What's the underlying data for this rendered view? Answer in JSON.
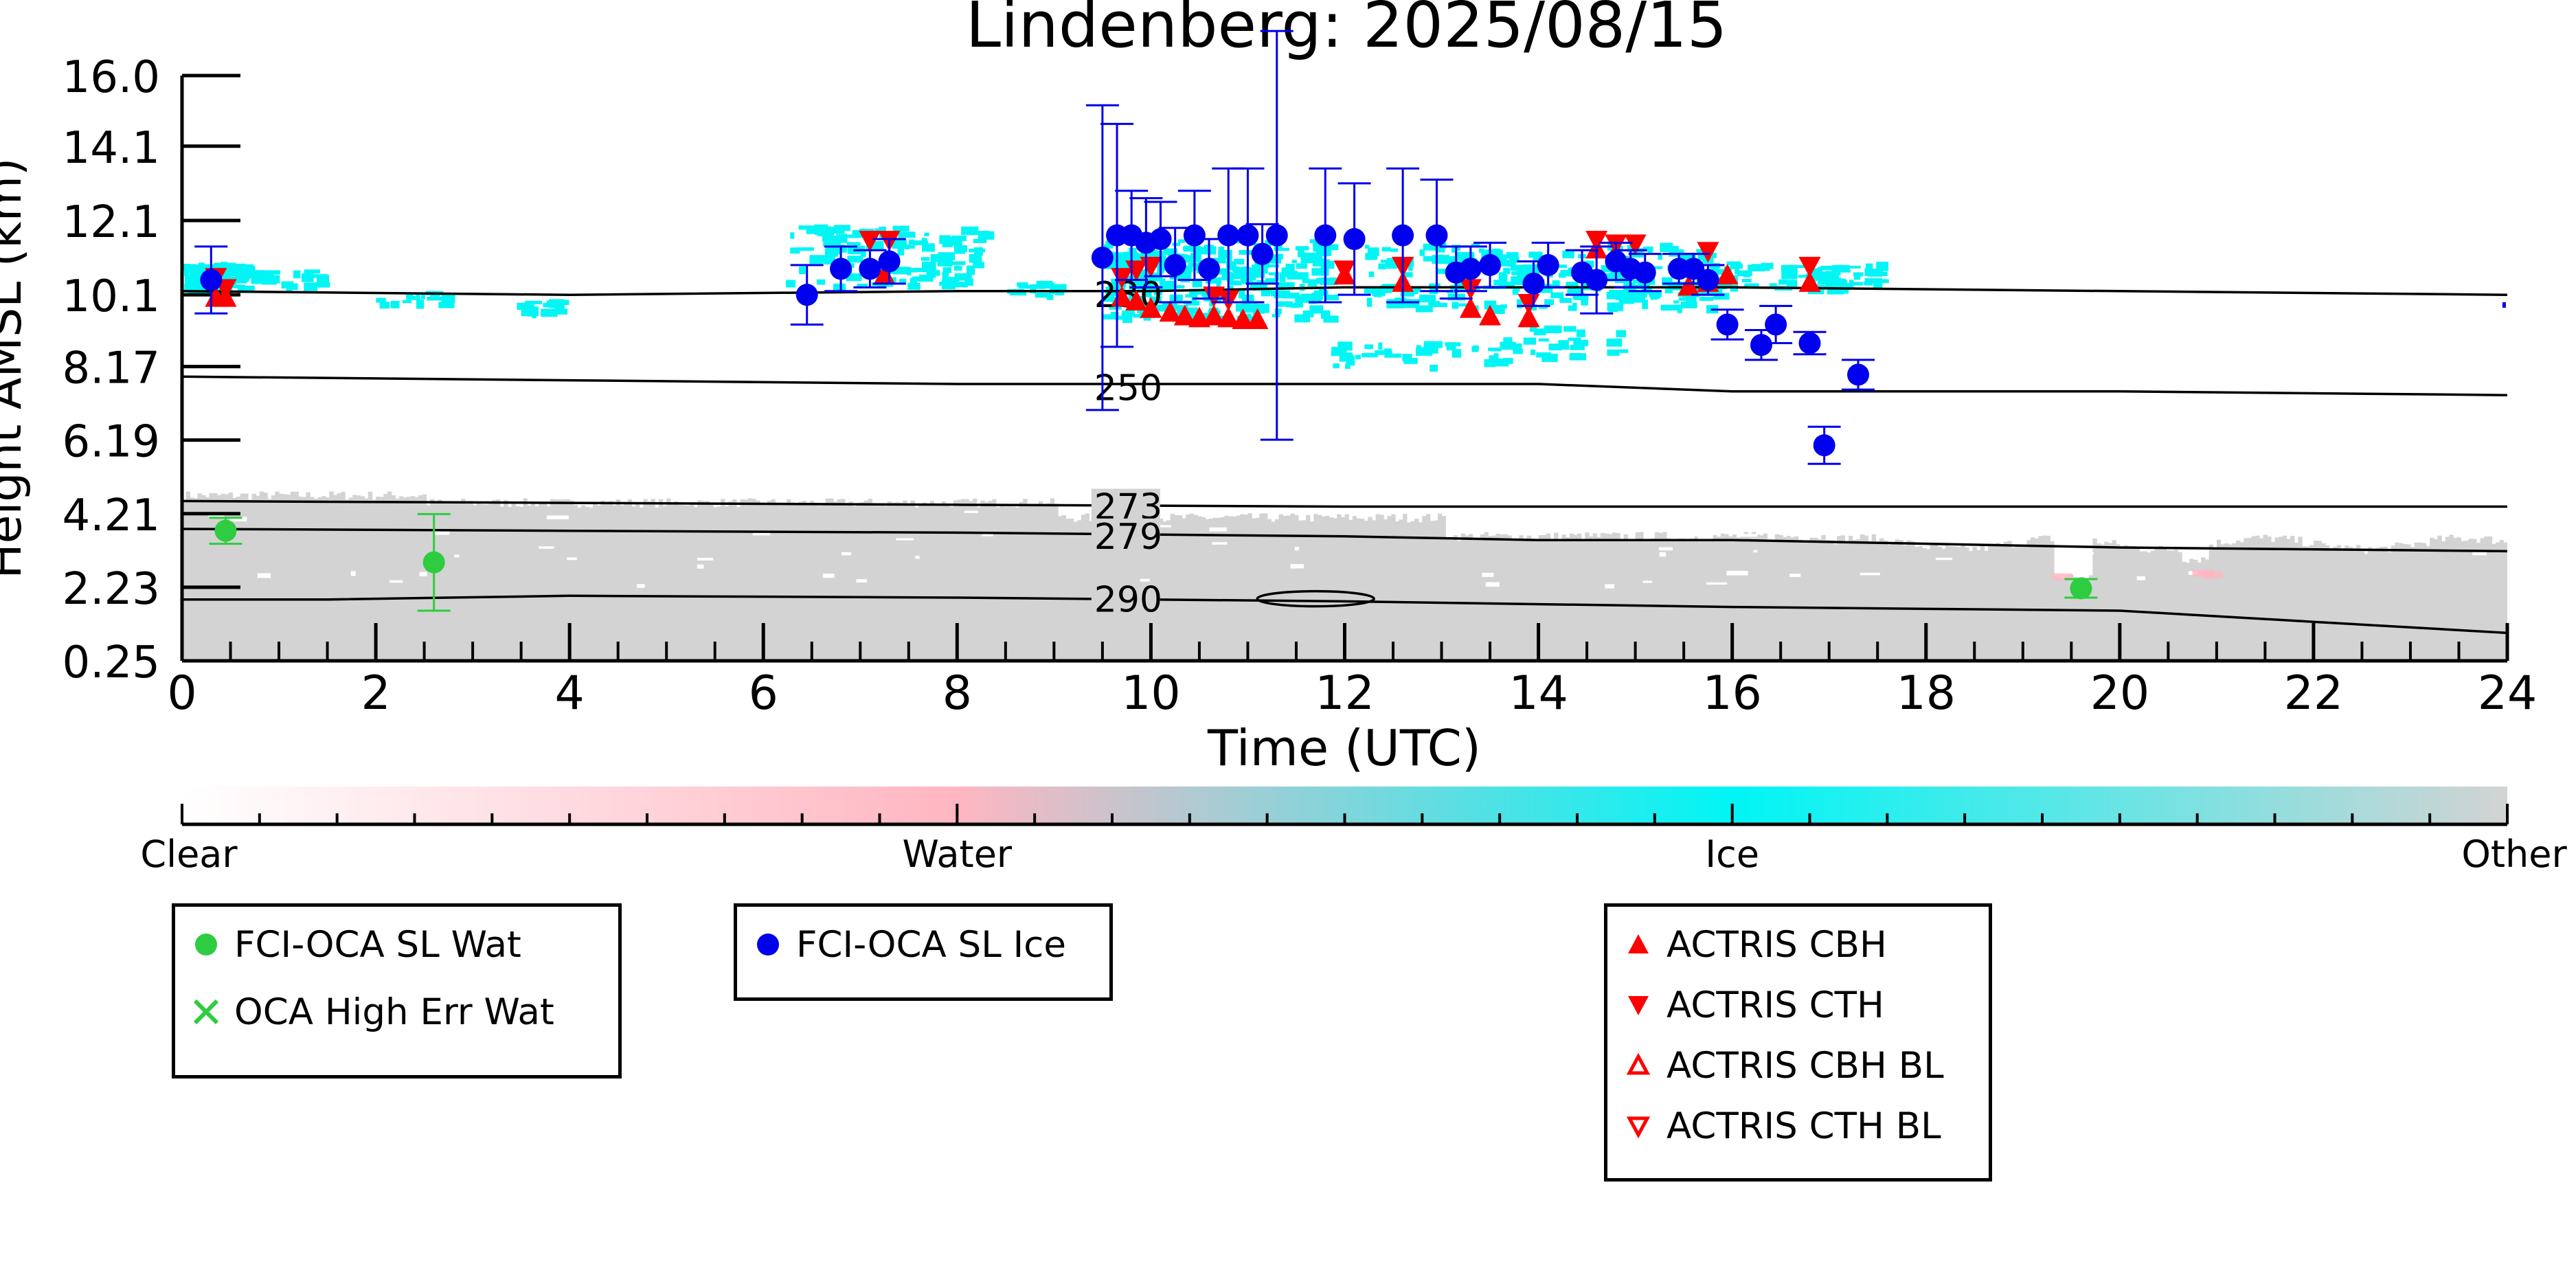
{
  "chart_data": {
    "type": "scatter",
    "title": "Lindenberg: 2025/08/15",
    "xlabel": "Time (UTC)",
    "ylabel": "Height AMSL (km)",
    "xlim": [
      0,
      24
    ],
    "ylim": [
      0.25,
      16.0
    ],
    "x_ticks": [
      "0",
      "2",
      "4",
      "6",
      "8",
      "10",
      "12",
      "14",
      "16",
      "18",
      "20",
      "22",
      "24"
    ],
    "y_ticks": [
      "0.25",
      "2.23",
      "4.21",
      "6.19",
      "8.17",
      "10.1",
      "12.1",
      "14.1",
      "16.0"
    ],
    "background": "cloud phase classification (Clear, Water, Ice, Other) with temperature contours (K)",
    "colorbar": {
      "labels": [
        "Clear",
        "Water",
        "Ice",
        "Other"
      ],
      "colors": [
        "#ffffff",
        "#ffb6c1",
        "#00f5f5",
        "#d3d3d3"
      ]
    },
    "temperature_contours": [
      {
        "label": "230",
        "x": [
          0,
          4,
          8,
          10,
          12,
          16,
          20,
          24
        ],
        "y": [
          10.2,
          10.1,
          10.2,
          10.2,
          10.3,
          10.3,
          10.2,
          10.1
        ],
        "label_at": [
          9.4,
          10.1
        ]
      },
      {
        "label": "250",
        "x": [
          0,
          4,
          8,
          10,
          12,
          14,
          16,
          20,
          24
        ],
        "y": [
          7.9,
          7.8,
          7.7,
          7.7,
          7.7,
          7.7,
          7.5,
          7.5,
          7.4
        ],
        "label_at": [
          9.4,
          7.6
        ]
      },
      {
        "label": "273",
        "x": [
          0,
          4,
          8,
          12,
          16,
          20,
          24
        ],
        "y": [
          4.55,
          4.5,
          4.45,
          4.4,
          4.4,
          4.4,
          4.4
        ],
        "label_at": [
          9.4,
          4.4
        ]
      },
      {
        "label": "279",
        "x": [
          0,
          4,
          8,
          12,
          14,
          16,
          20,
          24
        ],
        "y": [
          3.8,
          3.75,
          3.7,
          3.6,
          3.5,
          3.5,
          3.3,
          3.2
        ],
        "label_at": [
          9.4,
          3.6
        ]
      },
      {
        "label": "290",
        "x": [
          0,
          1.5,
          4,
          8,
          10,
          12,
          16,
          20,
          22,
          24
        ],
        "y": [
          1.9,
          1.9,
          2.0,
          1.95,
          1.9,
          1.85,
          1.7,
          1.6,
          1.3,
          1.0
        ],
        "label_at": [
          9.4,
          1.9
        ]
      }
    ],
    "series": [
      {
        "name": "FCI-OCA SL Wat",
        "color": "#2ecc40",
        "marker": "circle",
        "points": [
          {
            "x": 0.45,
            "y": 3.75,
            "err": 0.35
          },
          {
            "x": 2.6,
            "y": 2.9,
            "err": 1.3
          },
          {
            "x": 19.6,
            "y": 2.2,
            "err": 0.25
          }
        ]
      },
      {
        "name": "OCA High Err Wat",
        "color": "#2ecc40",
        "marker": "x",
        "points": []
      },
      {
        "name": "FCI-OCA SL Ice",
        "color": "#0000ee",
        "marker": "circle",
        "points": [
          {
            "x": 0.3,
            "y": 10.5,
            "err": 0.9
          },
          {
            "x": 6.45,
            "y": 10.1,
            "err": 0.8
          },
          {
            "x": 6.8,
            "y": 10.8,
            "err": 0.6
          },
          {
            "x": 7.1,
            "y": 10.8,
            "err": 0.5
          },
          {
            "x": 7.3,
            "y": 11.0,
            "err": 0.6
          },
          {
            "x": 9.5,
            "y": 11.1,
            "err": 4.1
          },
          {
            "x": 9.65,
            "y": 11.7,
            "err": 3.0
          },
          {
            "x": 9.8,
            "y": 11.7,
            "err": 1.2
          },
          {
            "x": 9.95,
            "y": 11.5,
            "err": 1.2
          },
          {
            "x": 10.1,
            "y": 11.6,
            "err": 1.0
          },
          {
            "x": 10.25,
            "y": 10.9,
            "err": 1.0
          },
          {
            "x": 10.45,
            "y": 11.7,
            "err": 1.2
          },
          {
            "x": 10.6,
            "y": 10.8,
            "err": 0.8
          },
          {
            "x": 10.8,
            "y": 11.7,
            "err": 1.8
          },
          {
            "x": 11.0,
            "y": 11.7,
            "err": 1.8
          },
          {
            "x": 11.15,
            "y": 11.2,
            "err": 0.8
          },
          {
            "x": 11.3,
            "y": 11.7,
            "err": 5.5
          },
          {
            "x": 11.8,
            "y": 11.7,
            "err": 1.8
          },
          {
            "x": 12.1,
            "y": 11.6,
            "err": 1.5
          },
          {
            "x": 12.6,
            "y": 11.7,
            "err": 1.8
          },
          {
            "x": 12.95,
            "y": 11.7,
            "err": 1.5
          },
          {
            "x": 13.15,
            "y": 10.7,
            "err": 0.7
          },
          {
            "x": 13.3,
            "y": 10.8,
            "err": 0.6
          },
          {
            "x": 13.5,
            "y": 10.9,
            "err": 0.6
          },
          {
            "x": 13.95,
            "y": 10.4,
            "err": 0.6
          },
          {
            "x": 14.1,
            "y": 10.9,
            "err": 0.6
          },
          {
            "x": 14.45,
            "y": 10.7,
            "err": 0.6
          },
          {
            "x": 14.6,
            "y": 10.5,
            "err": 0.9
          },
          {
            "x": 14.8,
            "y": 11.0,
            "err": 0.5
          },
          {
            "x": 14.95,
            "y": 10.8,
            "err": 0.5
          },
          {
            "x": 15.1,
            "y": 10.7,
            "err": 0.5
          },
          {
            "x": 15.45,
            "y": 10.8,
            "err": 0.4
          },
          {
            "x": 15.6,
            "y": 10.8,
            "err": 0.4
          },
          {
            "x": 15.75,
            "y": 10.5,
            "err": 0.4
          },
          {
            "x": 15.95,
            "y": 9.3,
            "err": 0.4
          },
          {
            "x": 16.3,
            "y": 8.75,
            "err": 0.4
          },
          {
            "x": 16.45,
            "y": 9.3,
            "err": 0.5
          },
          {
            "x": 16.8,
            "y": 8.8,
            "err": 0.3
          },
          {
            "x": 16.95,
            "y": 6.05,
            "err": 0.5
          },
          {
            "x": 17.3,
            "y": 7.95,
            "err": 0.4
          }
        ]
      },
      {
        "name": "ACTRIS CBH",
        "color": "#ff0000",
        "marker": "triangle-up",
        "points": [
          {
            "x": 0.35,
            "y": 10.0
          },
          {
            "x": 0.45,
            "y": 10.0
          },
          {
            "x": 7.25,
            "y": 10.6
          },
          {
            "x": 9.7,
            "y": 10.0
          },
          {
            "x": 9.85,
            "y": 9.9
          },
          {
            "x": 10.0,
            "y": 9.7
          },
          {
            "x": 10.2,
            "y": 9.6
          },
          {
            "x": 10.35,
            "y": 9.5
          },
          {
            "x": 10.5,
            "y": 9.45
          },
          {
            "x": 10.65,
            "y": 9.5
          },
          {
            "x": 10.8,
            "y": 9.45
          },
          {
            "x": 10.95,
            "y": 9.4
          },
          {
            "x": 11.1,
            "y": 9.4
          },
          {
            "x": 12.0,
            "y": 10.6
          },
          {
            "x": 12.6,
            "y": 10.4
          },
          {
            "x": 13.3,
            "y": 9.7
          },
          {
            "x": 13.5,
            "y": 9.5
          },
          {
            "x": 13.9,
            "y": 9.45
          },
          {
            "x": 14.6,
            "y": 11.3
          },
          {
            "x": 14.8,
            "y": 11.2
          },
          {
            "x": 15.55,
            "y": 10.3
          },
          {
            "x": 15.75,
            "y": 10.4
          },
          {
            "x": 15.95,
            "y": 10.6
          },
          {
            "x": 16.8,
            "y": 10.4
          }
        ]
      },
      {
        "name": "ACTRIS CTH",
        "color": "#ff0000",
        "marker": "triangle-down",
        "points": [
          {
            "x": 0.35,
            "y": 10.6
          },
          {
            "x": 0.45,
            "y": 10.3
          },
          {
            "x": 7.1,
            "y": 11.6
          },
          {
            "x": 7.3,
            "y": 11.6
          },
          {
            "x": 9.7,
            "y": 10.6
          },
          {
            "x": 9.85,
            "y": 10.8
          },
          {
            "x": 10.0,
            "y": 10.9
          },
          {
            "x": 10.65,
            "y": 10.1
          },
          {
            "x": 10.8,
            "y": 10.0
          },
          {
            "x": 12.0,
            "y": 10.8
          },
          {
            "x": 12.6,
            "y": 10.9
          },
          {
            "x": 13.3,
            "y": 10.3
          },
          {
            "x": 13.9,
            "y": 9.9
          },
          {
            "x": 14.6,
            "y": 11.6
          },
          {
            "x": 14.8,
            "y": 11.5
          },
          {
            "x": 15.0,
            "y": 11.5
          },
          {
            "x": 15.55,
            "y": 10.8
          },
          {
            "x": 15.75,
            "y": 11.3
          },
          {
            "x": 16.8,
            "y": 10.9
          }
        ]
      },
      {
        "name": "ACTRIS CBH BL",
        "color": "#ff0000",
        "marker": "triangle-up-open",
        "points": []
      },
      {
        "name": "ACTRIS CTH BL",
        "color": "#ff0000",
        "marker": "triangle-down-open",
        "points": []
      }
    ],
    "legend": {
      "placement": "below the plot, in three boxes",
      "groups": [
        [
          "FCI-OCA SL Wat",
          "OCA High Err Wat"
        ],
        [
          "FCI-OCA SL Ice"
        ],
        [
          "ACTRIS CBH",
          "ACTRIS CTH",
          "ACTRIS CBH BL",
          "ACTRIS CTH BL"
        ]
      ]
    }
  }
}
